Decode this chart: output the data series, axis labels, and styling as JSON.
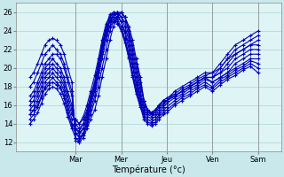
{
  "background_color": "#c8e8ec",
  "plot_bg_color": "#dff4f4",
  "line_color": "#0000bb",
  "marker": "+",
  "markersize": 3,
  "linewidth": 0.8,
  "xlabel": "Température (°c)",
  "yticks": [
    12,
    14,
    16,
    18,
    20,
    22,
    24,
    26
  ],
  "ylim": [
    11.0,
    27.0
  ],
  "day_labels": [
    "Mar",
    "Mer",
    "Jeu",
    "Ven",
    "Sam"
  ],
  "xlim": [
    -0.3,
    5.5
  ],
  "grid_color": "#a0cccc",
  "series": [
    {
      "xs": [
        0.0,
        0.08,
        0.17,
        0.25,
        0.33,
        0.42,
        0.5,
        0.58,
        0.67,
        0.75,
        0.83,
        0.92,
        1.0,
        1.08,
        1.17,
        1.25,
        1.33,
        1.42,
        1.5,
        1.58,
        1.67,
        1.75,
        1.83,
        1.92,
        2.0,
        2.08,
        2.17,
        2.25,
        2.33,
        2.42,
        2.5,
        2.58,
        2.67,
        2.75,
        2.83,
        2.92,
        3.0,
        3.08,
        3.17,
        3.33,
        3.5,
        3.67,
        3.83,
        4.0,
        4.17,
        4.33,
        4.5,
        4.67,
        4.83,
        5.0
      ],
      "ys": [
        19.0,
        19.5,
        20.5,
        21.5,
        22.5,
        23.0,
        23.2,
        23.0,
        22.5,
        21.5,
        20.0,
        18.5,
        12.2,
        12.0,
        12.5,
        13.5,
        14.5,
        15.5,
        17.0,
        19.0,
        21.0,
        23.0,
        24.5,
        25.5,
        26.0,
        25.5,
        24.5,
        23.0,
        21.0,
        19.0,
        16.5,
        15.5,
        15.0,
        15.5,
        16.0,
        16.5,
        16.5,
        17.0,
        17.5,
        18.0,
        18.5,
        19.0,
        19.5,
        19.5,
        20.5,
        21.5,
        22.5,
        23.0,
        23.5,
        24.0
      ]
    },
    {
      "xs": [
        0.0,
        0.08,
        0.17,
        0.25,
        0.33,
        0.42,
        0.5,
        0.58,
        0.67,
        0.75,
        0.83,
        0.92,
        1.0,
        1.08,
        1.17,
        1.25,
        1.33,
        1.42,
        1.5,
        1.58,
        1.67,
        1.75,
        1.83,
        1.92,
        2.0,
        2.08,
        2.17,
        2.25,
        2.33,
        2.42,
        2.5,
        2.58,
        2.67,
        2.75,
        2.83,
        2.92,
        3.0,
        3.17,
        3.33,
        3.5,
        3.67,
        3.83,
        4.0,
        4.17,
        4.33,
        4.5,
        4.67,
        4.83,
        5.0
      ],
      "ys": [
        18.0,
        18.5,
        19.5,
        20.5,
        21.5,
        22.0,
        22.5,
        22.0,
        21.5,
        20.5,
        19.0,
        17.5,
        12.5,
        12.2,
        12.8,
        13.8,
        15.0,
        16.5,
        18.0,
        20.0,
        22.0,
        24.0,
        25.0,
        25.5,
        26.0,
        25.5,
        24.0,
        22.5,
        20.5,
        18.5,
        16.5,
        15.5,
        15.0,
        15.5,
        16.0,
        16.5,
        16.5,
        17.0,
        17.5,
        18.0,
        18.5,
        19.0,
        19.0,
        20.0,
        21.0,
        22.0,
        22.5,
        23.0,
        23.5
      ]
    },
    {
      "xs": [
        0.0,
        0.08,
        0.17,
        0.25,
        0.33,
        0.42,
        0.5,
        0.58,
        0.67,
        0.75,
        0.83,
        0.92,
        1.0,
        1.08,
        1.17,
        1.25,
        1.33,
        1.42,
        1.5,
        1.58,
        1.67,
        1.75,
        1.83,
        1.92,
        2.0,
        2.08,
        2.17,
        2.25,
        2.33,
        2.42,
        2.5,
        2.58,
        2.67,
        2.75,
        2.83,
        2.92,
        3.0,
        3.17,
        3.33,
        3.5,
        3.67,
        3.83,
        4.0,
        4.17,
        4.33,
        4.5,
        4.67,
        4.83,
        5.0
      ],
      "ys": [
        17.0,
        17.5,
        18.5,
        19.5,
        20.5,
        21.0,
        21.5,
        21.5,
        21.0,
        20.0,
        18.5,
        17.0,
        13.0,
        12.5,
        13.0,
        14.0,
        15.5,
        17.0,
        19.0,
        21.0,
        23.0,
        24.5,
        25.5,
        26.0,
        26.0,
        25.5,
        24.0,
        22.0,
        20.0,
        18.0,
        16.5,
        15.5,
        15.2,
        15.5,
        16.0,
        16.5,
        16.5,
        17.0,
        17.5,
        18.0,
        18.5,
        19.0,
        19.0,
        19.5,
        20.5,
        21.5,
        22.0,
        22.5,
        23.0
      ]
    },
    {
      "xs": [
        0.0,
        0.08,
        0.17,
        0.25,
        0.33,
        0.42,
        0.5,
        0.58,
        0.67,
        0.75,
        0.83,
        0.92,
        1.0,
        1.08,
        1.17,
        1.25,
        1.33,
        1.42,
        1.5,
        1.58,
        1.67,
        1.75,
        1.83,
        1.92,
        2.0,
        2.08,
        2.17,
        2.25,
        2.33,
        2.42,
        2.5,
        2.58,
        2.67,
        2.75,
        2.83,
        2.92,
        3.0,
        3.17,
        3.33,
        3.5,
        3.67,
        3.83,
        4.0,
        4.17,
        4.33,
        4.5,
        4.67,
        4.83,
        5.0
      ],
      "ys": [
        16.5,
        17.0,
        18.0,
        19.0,
        20.0,
        20.5,
        21.0,
        20.5,
        20.0,
        19.0,
        17.5,
        16.0,
        13.5,
        13.0,
        13.5,
        14.5,
        16.0,
        17.5,
        19.5,
        21.5,
        23.5,
        25.0,
        25.8,
        26.0,
        25.5,
        25.0,
        23.5,
        21.5,
        19.5,
        17.5,
        16.0,
        15.5,
        15.2,
        15.5,
        16.0,
        16.5,
        16.8,
        17.2,
        17.8,
        18.2,
        18.8,
        19.2,
        19.5,
        20.0,
        21.0,
        21.5,
        22.0,
        22.5,
        22.5
      ]
    },
    {
      "xs": [
        0.0,
        0.08,
        0.17,
        0.25,
        0.33,
        0.42,
        0.5,
        0.58,
        0.67,
        0.75,
        0.83,
        0.92,
        1.0,
        1.08,
        1.17,
        1.25,
        1.33,
        1.42,
        1.5,
        1.58,
        1.67,
        1.75,
        1.83,
        1.92,
        2.0,
        2.08,
        2.17,
        2.25,
        2.33,
        2.42,
        2.5,
        2.58,
        2.67,
        2.75,
        2.83,
        2.92,
        3.0,
        3.17,
        3.33,
        3.5,
        3.67,
        3.83,
        4.0,
        4.17,
        4.33,
        4.5,
        4.67,
        4.83,
        5.0
      ],
      "ys": [
        16.0,
        16.5,
        17.5,
        18.5,
        19.5,
        20.0,
        20.5,
        20.0,
        19.5,
        18.5,
        17.0,
        15.5,
        14.0,
        13.5,
        14.0,
        15.0,
        16.5,
        18.0,
        20.0,
        22.0,
        24.0,
        25.5,
        26.0,
        26.0,
        25.5,
        24.5,
        23.0,
        21.0,
        19.0,
        17.0,
        15.8,
        15.2,
        15.0,
        15.2,
        15.8,
        16.2,
        16.5,
        17.0,
        17.5,
        18.0,
        18.5,
        19.0,
        19.0,
        19.5,
        20.0,
        21.0,
        21.5,
        22.0,
        22.0
      ]
    },
    {
      "xs": [
        0.0,
        0.08,
        0.17,
        0.25,
        0.33,
        0.42,
        0.5,
        0.58,
        0.67,
        0.75,
        0.83,
        0.92,
        1.0,
        1.08,
        1.17,
        1.25,
        1.33,
        1.42,
        1.5,
        1.58,
        1.67,
        1.75,
        1.83,
        1.92,
        2.0,
        2.08,
        2.17,
        2.25,
        2.33,
        2.42,
        2.5,
        2.58,
        2.67,
        2.75,
        2.83,
        2.92,
        3.0,
        3.17,
        3.33,
        3.5,
        3.67,
        3.83,
        4.0,
        4.17,
        4.33,
        4.5,
        4.67,
        4.83,
        5.0
      ],
      "ys": [
        15.5,
        16.0,
        17.0,
        18.0,
        19.0,
        19.5,
        20.0,
        19.5,
        19.0,
        18.0,
        16.5,
        15.0,
        14.5,
        14.0,
        14.5,
        15.5,
        17.0,
        18.5,
        20.5,
        22.5,
        24.5,
        25.8,
        26.0,
        25.8,
        25.0,
        24.0,
        22.5,
        20.5,
        18.5,
        16.8,
        15.5,
        15.0,
        14.8,
        15.0,
        15.5,
        16.0,
        16.5,
        17.0,
        17.5,
        18.0,
        18.5,
        19.0,
        18.5,
        19.0,
        19.5,
        20.5,
        21.0,
        21.5,
        21.5
      ]
    },
    {
      "xs": [
        0.0,
        0.08,
        0.17,
        0.25,
        0.33,
        0.42,
        0.5,
        0.58,
        0.67,
        0.75,
        0.83,
        0.92,
        1.0,
        1.08,
        1.17,
        1.25,
        1.33,
        1.42,
        1.5,
        1.58,
        1.67,
        1.75,
        1.83,
        1.92,
        2.0,
        2.08,
        2.17,
        2.25,
        2.33,
        2.42,
        2.5,
        2.58,
        2.67,
        2.75,
        2.83,
        2.92,
        3.0,
        3.17,
        3.33,
        3.5,
        3.67,
        3.83,
        4.0,
        4.17,
        4.33,
        4.5,
        4.67,
        4.83,
        5.0
      ],
      "ys": [
        15.0,
        15.5,
        16.5,
        17.5,
        18.5,
        19.0,
        19.5,
        19.0,
        18.5,
        17.5,
        16.0,
        14.5,
        14.5,
        14.0,
        14.8,
        16.0,
        17.5,
        19.2,
        21.0,
        23.0,
        24.8,
        25.5,
        25.8,
        25.5,
        25.0,
        23.8,
        22.0,
        20.2,
        18.2,
        16.5,
        15.2,
        14.8,
        14.5,
        14.8,
        15.2,
        15.8,
        16.2,
        16.8,
        17.2,
        17.8,
        18.2,
        18.8,
        18.5,
        19.0,
        19.5,
        20.0,
        20.5,
        21.0,
        21.0
      ]
    },
    {
      "xs": [
        0.0,
        0.08,
        0.17,
        0.25,
        0.33,
        0.42,
        0.5,
        0.58,
        0.67,
        0.75,
        0.83,
        0.92,
        1.0,
        1.08,
        1.17,
        1.25,
        1.33,
        1.42,
        1.5,
        1.58,
        1.67,
        1.75,
        1.83,
        1.92,
        2.0,
        2.08,
        2.17,
        2.25,
        2.33,
        2.42,
        2.5,
        2.58,
        2.67,
        2.75,
        2.83,
        2.92,
        3.0,
        3.17,
        3.33,
        3.5,
        3.67,
        3.83,
        4.0,
        4.17,
        4.33,
        4.5,
        4.67,
        4.83,
        5.0
      ],
      "ys": [
        15.0,
        15.5,
        16.0,
        17.0,
        18.0,
        18.5,
        19.0,
        18.5,
        18.0,
        17.0,
        15.5,
        14.0,
        13.5,
        13.2,
        14.0,
        15.2,
        16.8,
        18.5,
        20.5,
        22.5,
        24.2,
        25.2,
        25.5,
        25.2,
        24.5,
        23.2,
        21.5,
        19.5,
        17.8,
        16.2,
        15.0,
        14.5,
        14.2,
        14.5,
        15.0,
        15.5,
        15.8,
        16.5,
        17.0,
        17.5,
        18.0,
        18.5,
        18.0,
        18.8,
        19.2,
        19.8,
        20.2,
        20.8,
        20.5
      ]
    },
    {
      "xs": [
        0.0,
        0.08,
        0.17,
        0.25,
        0.33,
        0.42,
        0.5,
        0.58,
        0.67,
        0.75,
        0.83,
        0.92,
        1.0,
        1.08,
        1.17,
        1.25,
        1.33,
        1.42,
        1.5,
        1.58,
        1.67,
        1.75,
        1.83,
        1.92,
        2.0,
        2.08,
        2.17,
        2.25,
        2.33,
        2.42,
        2.5,
        2.58,
        2.67,
        2.75,
        2.83,
        2.92,
        3.0,
        3.17,
        3.33,
        3.5,
        3.67,
        3.83,
        4.0,
        4.17,
        4.33,
        4.5,
        4.67,
        4.83,
        5.0
      ],
      "ys": [
        14.5,
        15.0,
        15.8,
        16.8,
        17.8,
        18.2,
        18.5,
        18.2,
        17.8,
        16.8,
        15.2,
        13.8,
        13.0,
        12.8,
        13.5,
        14.8,
        16.5,
        18.2,
        20.2,
        22.2,
        24.0,
        25.0,
        25.2,
        25.0,
        24.2,
        23.0,
        21.2,
        19.2,
        17.5,
        16.0,
        14.8,
        14.2,
        14.0,
        14.2,
        14.8,
        15.2,
        15.5,
        16.2,
        16.8,
        17.2,
        17.8,
        18.2,
        17.8,
        18.5,
        19.0,
        19.5,
        20.0,
        20.5,
        20.0
      ]
    },
    {
      "xs": [
        0.0,
        0.08,
        0.17,
        0.25,
        0.33,
        0.42,
        0.5,
        0.58,
        0.67,
        0.75,
        0.83,
        0.92,
        1.0,
        1.08,
        1.17,
        1.25,
        1.33,
        1.42,
        1.5,
        1.58,
        1.67,
        1.75,
        1.83,
        1.92,
        2.0,
        2.08,
        2.17,
        2.25,
        2.33,
        2.42,
        2.5,
        2.58,
        2.67,
        2.75,
        2.83,
        2.92,
        3.0,
        3.17,
        3.33,
        3.5,
        3.67,
        3.83,
        4.0,
        4.17,
        4.33,
        4.5,
        4.67,
        4.83,
        5.0
      ],
      "ys": [
        14.0,
        14.5,
        15.2,
        16.2,
        17.2,
        17.8,
        18.0,
        17.8,
        17.2,
        16.2,
        14.8,
        13.5,
        12.5,
        12.2,
        13.0,
        14.2,
        16.0,
        17.8,
        19.8,
        21.8,
        23.5,
        24.5,
        25.0,
        24.8,
        24.0,
        22.8,
        21.0,
        19.0,
        17.2,
        15.8,
        14.5,
        14.0,
        13.8,
        14.0,
        14.5,
        15.0,
        15.2,
        16.0,
        16.5,
        17.0,
        17.5,
        18.0,
        17.5,
        18.2,
        18.8,
        19.2,
        19.8,
        20.2,
        19.5
      ]
    }
  ]
}
